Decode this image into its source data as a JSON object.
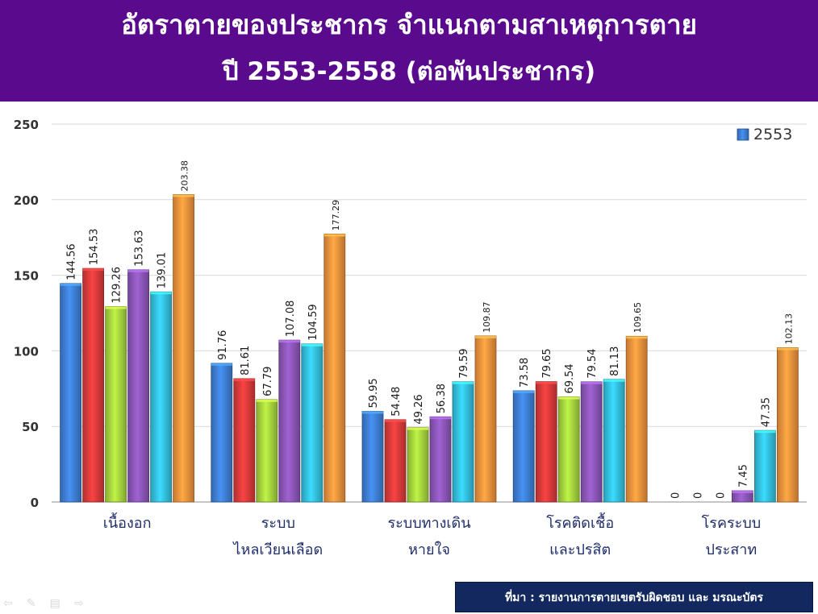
{
  "header": {
    "title_line1": "อัตราตายของประชากร จำแนกตามสาเหตุการตาย",
    "title_line2": "ปี 2553-2558 (ต่อพันประชากร)"
  },
  "source": {
    "text": "ที่มา :  รายงานการตายเขตรับผิดชอบ และ มรณะบัตร"
  },
  "nav": {
    "prev_icon": "arrow-left-icon",
    "pen_icon": "pen-icon",
    "menu_icon": "menu-icon",
    "next_icon": "arrow-right-icon"
  },
  "chart_data": {
    "type": "bar",
    "categories": [
      [
        "เนื้องอก"
      ],
      [
        "ระบบ",
        "ไหลเวียนเลือด"
      ],
      [
        "ระบบทางเดิน",
        "หายใจ"
      ],
      [
        "โรคติดเชื้อ",
        "และปรสิต"
      ],
      [
        "โรคระบบ",
        "ประสาท"
      ]
    ],
    "series": [
      {
        "name": "2553",
        "color": "#3e7fd4",
        "values": [
          144.56,
          91.76,
          59.95,
          73.58,
          0
        ]
      },
      {
        "color": "#d93a3a",
        "values": [
          154.53,
          81.61,
          54.48,
          79.65,
          0
        ]
      },
      {
        "color": "#a6d43e",
        "values": [
          129.26,
          67.79,
          49.26,
          69.54,
          0
        ]
      },
      {
        "color": "#8c56b8",
        "values": [
          153.63,
          107.08,
          56.38,
          79.54,
          7.45
        ]
      },
      {
        "color": "#33c0de",
        "values": [
          139.01,
          104.59,
          79.59,
          81.13,
          47.35
        ]
      },
      {
        "color": "#f0923c",
        "values": [
          203.38,
          177.29,
          109.87,
          109.65,
          102.13
        ]
      }
    ],
    "value_labels": [
      [
        "144.56",
        "91.76",
        "59.95",
        "73.58",
        "0"
      ],
      [
        "154.53",
        "81.61",
        "54.48",
        "79.65",
        "0"
      ],
      [
        "129.26",
        "67.79",
        "49.26",
        "69.54",
        "0"
      ],
      [
        "153.63",
        "107.08",
        "56.38",
        "79.54",
        "7.45"
      ],
      [
        "139.01",
        "104.59",
        "79.59",
        "81.13",
        "47.35"
      ],
      [
        "203.38",
        "177.29",
        "109.87",
        "109.65",
        "102.13"
      ]
    ],
    "y_ticks": [
      "0",
      "50",
      "100",
      "150",
      "200",
      "250"
    ],
    "ylim": [
      0,
      250
    ],
    "grid": true,
    "legend": {
      "placement": "top-right",
      "entries": [
        "2553"
      ]
    }
  }
}
